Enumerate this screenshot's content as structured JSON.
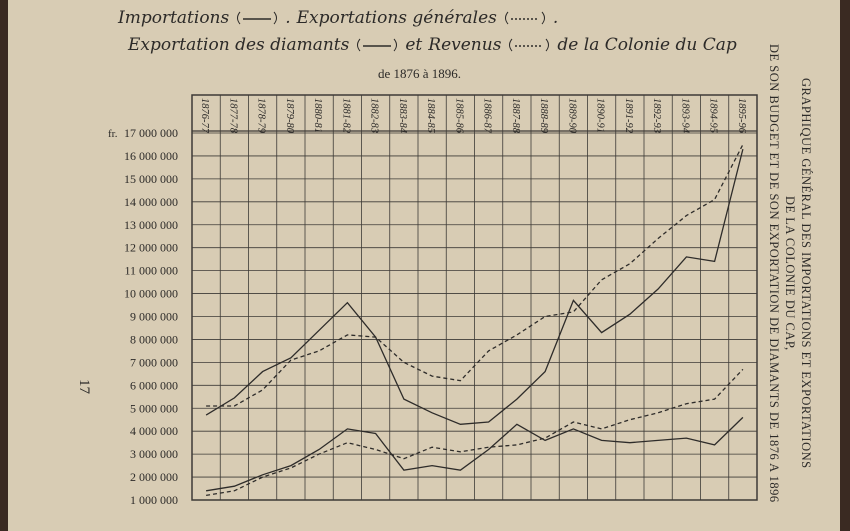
{
  "page": {
    "number": "17",
    "side_caption": [
      "GRAPHIQUE GÉNÉRAL DES IMPORTATIONS ET EXPORTATIONS",
      "DE LA COLONIE DU CAP,",
      "DE SON BUDGET ET DE SON EXPORTATION DE DIAMANTS DE 1876 A 1896"
    ]
  },
  "chart_data": {
    "type": "line",
    "title_joins": [
      ".",
      ".",
      "et",
      "de la Colonie du Cap"
    ],
    "subtitle": "de 1876 à 1896.",
    "y_unit": "fr.",
    "categories": [
      "1876-77",
      "1877-78",
      "1878-79",
      "1879-80",
      "1880-81",
      "1881-82",
      "1882-83",
      "1883-84",
      "1884-85",
      "1885-86",
      "1886-87",
      "1887-88",
      "1888-89",
      "1889-90",
      "1890-91",
      "1891-92",
      "1892-93",
      "1893-94",
      "1894-95",
      "1895-96"
    ],
    "ylim": [
      1000000,
      17000000
    ],
    "yticks": [
      {
        "value": 1000000,
        "label": "1 000 000"
      },
      {
        "value": 2000000,
        "label": "2 000 000"
      },
      {
        "value": 3000000,
        "label": "3 000 000"
      },
      {
        "value": 4000000,
        "label": "4 000 000"
      },
      {
        "value": 5000000,
        "label": "5 000 000"
      },
      {
        "value": 6000000,
        "label": "6 000 000"
      },
      {
        "value": 7000000,
        "label": "7 000 000"
      },
      {
        "value": 8000000,
        "label": "8 000 000"
      },
      {
        "value": 9000000,
        "label": "9 000 000"
      },
      {
        "value": 10000000,
        "label": "10 000 000"
      },
      {
        "value": 11000000,
        "label": "11 000 000"
      },
      {
        "value": 12000000,
        "label": "12 000 000"
      },
      {
        "value": 13000000,
        "label": "13 000 000"
      },
      {
        "value": 14000000,
        "label": "14 000 000"
      },
      {
        "value": 15000000,
        "label": "15 000 000"
      },
      {
        "value": 16000000,
        "label": "16 000 000"
      },
      {
        "value": 17000000,
        "label": "17 000 000"
      }
    ],
    "grid": true,
    "series": [
      {
        "name": "Importations",
        "color": "#2e2c2a",
        "dash": "solid",
        "values": [
          4700000,
          5450000,
          6600000,
          7200000,
          8400000,
          9600000,
          8100000,
          5400000,
          4800000,
          4300000,
          4400000,
          5400000,
          6600000,
          9700000,
          8300000,
          9100000,
          10200000,
          11600000,
          11400000,
          16300000
        ]
      },
      {
        "name": "Exportations générales",
        "color": "#2e2c2a",
        "dash": "dashed",
        "values": [
          5100000,
          5100000,
          5800000,
          7100000,
          7500000,
          8200000,
          8100000,
          7000000,
          6400000,
          6200000,
          7500000,
          8200000,
          9000000,
          9200000,
          10600000,
          11300000,
          12400000,
          13400000,
          14100000,
          16500000
        ]
      },
      {
        "name": "Exportation des diamants",
        "color": "#2e2c2a",
        "dash": "solid",
        "values": [
          1400000,
          1600000,
          2100000,
          2500000,
          3200000,
          4100000,
          3900000,
          2300000,
          2500000,
          2300000,
          3200000,
          4300000,
          3600000,
          4100000,
          3600000,
          3500000,
          3600000,
          3700000,
          3400000,
          4600000
        ]
      },
      {
        "name": "Revenus",
        "color": "#2e2c2a",
        "dash": "dashed",
        "values": [
          1200000,
          1400000,
          2000000,
          2400000,
          3000000,
          3500000,
          3200000,
          2800000,
          3300000,
          3100000,
          3300000,
          3400000,
          3700000,
          4400000,
          4100000,
          4500000,
          4800000,
          5200000,
          5400000,
          6700000
        ]
      }
    ]
  }
}
